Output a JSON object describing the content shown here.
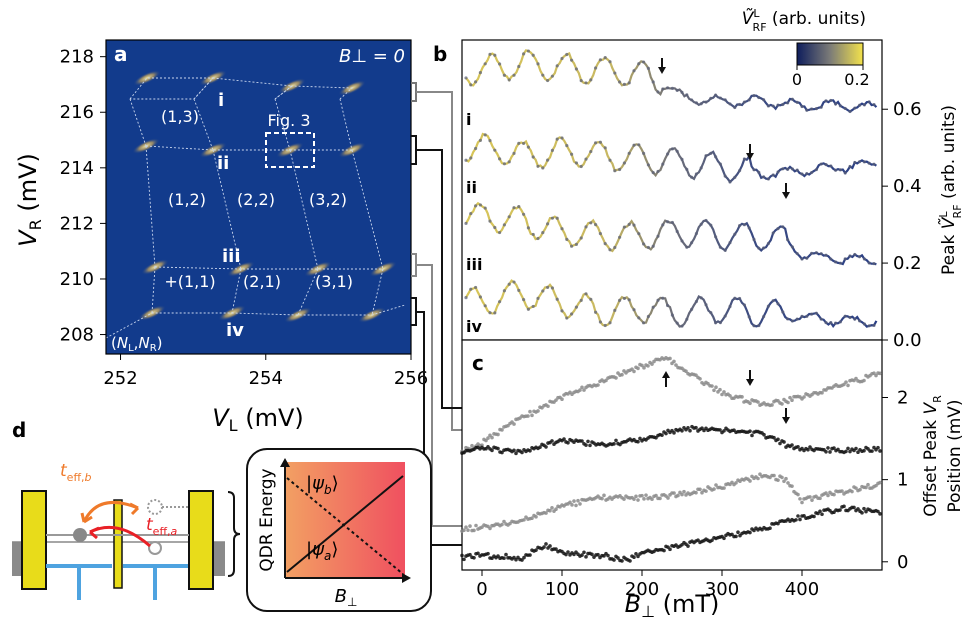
{
  "figure": {
    "panel_labels": {
      "a": "a",
      "b": "b",
      "c": "c",
      "d": "d"
    },
    "panel_a": {
      "field_label": "B⊥ = 0",
      "fig3_label": "Fig. 3",
      "roman": [
        "i",
        "ii",
        "iii",
        "iv"
      ],
      "charge_states": [
        "(1,3)",
        "(1,2)",
        "(2,2)",
        "(3,2)",
        "+(1,1)",
        "(2,1)",
        "(3,1)"
      ],
      "corner_label": "(N_L,N_R)",
      "xlabel": "V_L (mV)",
      "ylabel": "V_R (mV)",
      "xticks": [
        "252",
        "254",
        "256"
      ],
      "yticks": [
        "218",
        "216",
        "214",
        "212",
        "210",
        "208"
      ]
    },
    "colorbar": {
      "title": "Ṽ_RF^L (arb. units)",
      "min": "0",
      "max": "0.2"
    },
    "panel_b": {
      "ylabel": "Peak Ṽ_RF^L (arb. units)",
      "yticks": [
        "0.6",
        "0.4",
        "0.2",
        "0.0"
      ],
      "trace_labels": [
        "i",
        "ii",
        "iii",
        "iv"
      ]
    },
    "panel_c": {
      "ylabel_1": "Offset Peak V_R",
      "ylabel_2": "Position (mV)",
      "yticks": [
        "2",
        "1",
        "0"
      ],
      "xticks": [
        "0",
        "100",
        "200",
        "300",
        "400"
      ],
      "xlabel": "B⊥ (mT)"
    },
    "panel_d": {
      "t_eff_b": "t_eff,b",
      "t_eff_a": "t_eff,a",
      "ylabel": "QDR Energy",
      "xlabel": "B⊥",
      "state_b": "|ψb⟩",
      "state_a": "|ψa⟩"
    }
  },
  "chart_data": [
    {
      "type": "line",
      "panel": "b",
      "xlabel": "B⊥ (mT)",
      "ylabel": "Peak Ṽ_RF^L (arb. units)",
      "xlim": [
        -25,
        500
      ],
      "ylim": [
        0.0,
        0.78
      ],
      "series": [
        {
          "name": "i",
          "x": [
            0,
            50,
            100,
            150,
            200,
            225,
            250,
            300,
            350,
            400,
            450,
            500
          ],
          "values": [
            0.7,
            0.72,
            0.71,
            0.7,
            0.69,
            0.67,
            0.63,
            0.62,
            0.62,
            0.61,
            0.61,
            0.6
          ]
        },
        {
          "name": "ii",
          "x": [
            0,
            50,
            100,
            150,
            200,
            250,
            300,
            335,
            350,
            400,
            450,
            500
          ],
          "values": [
            0.5,
            0.48,
            0.49,
            0.48,
            0.47,
            0.46,
            0.45,
            0.44,
            0.43,
            0.44,
            0.45,
            0.46
          ]
        },
        {
          "name": "iii",
          "x": [
            0,
            50,
            100,
            150,
            200,
            250,
            300,
            350,
            380,
            400,
            450,
            500
          ],
          "values": [
            0.32,
            0.31,
            0.28,
            0.27,
            0.27,
            0.28,
            0.27,
            0.27,
            0.26,
            0.22,
            0.21,
            0.21
          ]
        },
        {
          "name": "iv",
          "x": [
            0,
            50,
            100,
            150,
            200,
            250,
            300,
            350,
            400,
            450,
            500
          ],
          "values": [
            0.1,
            0.12,
            0.1,
            0.07,
            0.08,
            0.07,
            0.08,
            0.07,
            0.06,
            0.05,
            0.05
          ]
        }
      ],
      "arrows_mT": [
        225,
        335,
        380
      ]
    },
    {
      "type": "scatter",
      "panel": "c",
      "xlabel": "B⊥ (mT)",
      "ylabel": "Offset Peak V_R Position (mV)",
      "xlim": [
        -25,
        500
      ],
      "ylim": [
        -0.1,
        2.7
      ],
      "series": [
        {
          "name": "i",
          "x": [
            -25,
            0,
            50,
            100,
            150,
            200,
            230,
            260,
            300,
            335,
            360,
            400,
            450,
            500
          ],
          "values": [
            1.35,
            1.45,
            1.75,
            2.0,
            2.2,
            2.38,
            2.48,
            2.3,
            2.05,
            1.95,
            1.92,
            2.0,
            2.15,
            2.3
          ]
        },
        {
          "name": "ii",
          "x": [
            -25,
            0,
            50,
            100,
            150,
            200,
            250,
            300,
            350,
            380,
            400,
            450,
            500
          ],
          "values": [
            1.35,
            1.38,
            1.33,
            1.48,
            1.43,
            1.48,
            1.62,
            1.6,
            1.55,
            1.42,
            1.38,
            1.35,
            1.38
          ]
        },
        {
          "name": "iii",
          "x": [
            -25,
            0,
            50,
            100,
            150,
            200,
            250,
            300,
            350,
            380,
            400,
            450,
            500
          ],
          "values": [
            0.4,
            0.42,
            0.5,
            0.68,
            0.78,
            0.78,
            0.82,
            0.92,
            1.05,
            1.0,
            0.75,
            0.85,
            0.95
          ]
        },
        {
          "name": "iv",
          "x": [
            -25,
            0,
            50,
            80,
            100,
            150,
            180,
            200,
            250,
            300,
            350,
            400,
            450,
            500
          ],
          "values": [
            0.05,
            0.08,
            0.05,
            0.2,
            0.1,
            0.08,
            0.02,
            0.1,
            0.2,
            0.3,
            0.4,
            0.55,
            0.65,
            0.6
          ]
        }
      ],
      "arrows_mT": [
        230,
        335,
        380
      ]
    }
  ]
}
